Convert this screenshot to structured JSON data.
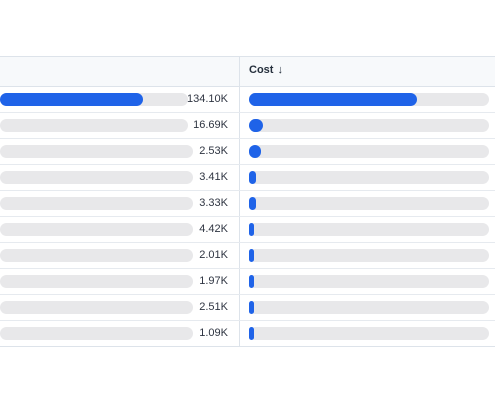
{
  "table": {
    "cost_header": "Cost",
    "sort_icon": "arrow-down-icon",
    "colors": {
      "bar": "#1f63e8",
      "track": "#e8e8ea",
      "border": "#dde3ea"
    },
    "rows": [
      {
        "value": "134.10K",
        "left_fill": 0.76,
        "cost_fill": 0.7
      },
      {
        "value": "16.69K",
        "left_fill": 0.0,
        "cost_fill": 0.06
      },
      {
        "value": "2.53K",
        "left_fill": 0.0,
        "cost_fill": 0.05
      },
      {
        "value": "3.41K",
        "left_fill": 0.0,
        "cost_fill": 0.03
      },
      {
        "value": "3.33K",
        "left_fill": 0.0,
        "cost_fill": 0.03
      },
      {
        "value": "4.42K",
        "left_fill": 0.0,
        "cost_fill": 0.02
      },
      {
        "value": "2.01K",
        "left_fill": 0.0,
        "cost_fill": 0.01
      },
      {
        "value": "1.97K",
        "left_fill": 0.0,
        "cost_fill": 0.01
      },
      {
        "value": "2.51K",
        "left_fill": 0.0,
        "cost_fill": 0.01
      },
      {
        "value": "1.09K",
        "left_fill": 0.0,
        "cost_fill": 0.01
      }
    ]
  }
}
